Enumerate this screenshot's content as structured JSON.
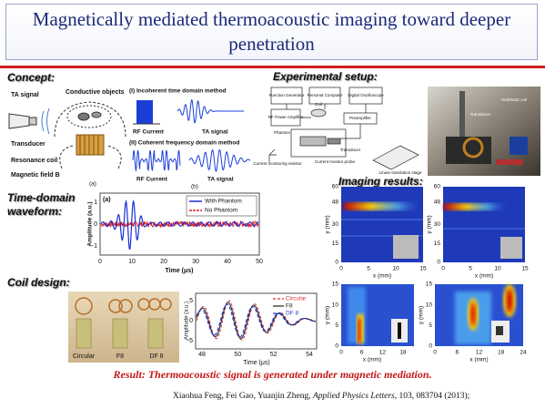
{
  "title": "Magnetically mediated thermoacoustic imaging toward deeper penetration",
  "sections": {
    "concept": "Concept:",
    "setup": "Experimental setup:",
    "waveform": "Time-domain waveform:",
    "coil": "Coil design:",
    "imaging": "Imaging results:"
  },
  "concept_figure": {
    "ta_signal": "TA signal",
    "conductive": "Conductive objects",
    "transducer": "Transducer",
    "coil": "Resonance coil",
    "field": "Magnetic field B",
    "method1": "(I) Incoherent time domain method",
    "method2": "(II) Coherent frequency domain method",
    "rf1": "RF Current",
    "ta1": "TA signal",
    "rf2": "RF Current",
    "ta2": "TA signal",
    "panel_a": "(a)",
    "panel_b": "(b)"
  },
  "setup_figure": {
    "function_generator": "Function Generator",
    "computer": "Personal Computer",
    "oscilloscope": "Digital Oscilloscope",
    "amplifier": "RF Power Amplifier",
    "coil": "Coil",
    "preamplifier": "Preamplifier",
    "phantom": "Phantom",
    "transducer": "Transducer",
    "resistor": "Current monitoring resistor",
    "probe": "Current monitor probe",
    "stage": "Linear translation stage",
    "photo_transducer": "Transducer",
    "photo_coil": "Helmholtz coil"
  },
  "waveform_plot": {
    "panel": "(a)",
    "legend": [
      "With Phantom",
      "No Phantom"
    ],
    "ylabel": "Amplitude (a.u.)",
    "xlabel": "Time (μs)",
    "yticks": [
      1,
      0,
      -1
    ],
    "xticks": [
      0,
      10,
      20,
      30,
      40,
      50
    ]
  },
  "coil_figure": {
    "photo_labels": [
      "Circular",
      "F8",
      "DF 8"
    ],
    "legend": [
      "Circular",
      "F8",
      "DF 8"
    ],
    "ylabel": "Amplitude (a.u.)",
    "xlabel": "Time (μs)",
    "yticks": [
      5,
      0,
      -5
    ],
    "xticks": [
      48,
      50,
      52,
      54
    ]
  },
  "imaging": {
    "ylabel": "y (mm)",
    "xlabel": "x (mm)",
    "top_yticks": [
      60,
      48,
      30,
      15,
      0
    ],
    "top_xticks": [
      0,
      5,
      10,
      15
    ],
    "bottom_left_yticks": [
      15,
      10,
      5,
      0
    ],
    "bottom_left_xticks": [
      0,
      6,
      12,
      18
    ],
    "bottom_right_yticks": [
      15,
      10,
      5,
      0
    ],
    "bottom_right_xticks": [
      0,
      6,
      12,
      18,
      24
    ]
  },
  "result": "Result: Thermoacoustic signal is generated under magnetic mediation.",
  "citation": {
    "authors": "Xiaohua Feng, Fei Gao, Yuanjin Zheng, ",
    "journal": "Applied Physics Letters",
    "rest": ", 103, 083704 (2013);"
  }
}
